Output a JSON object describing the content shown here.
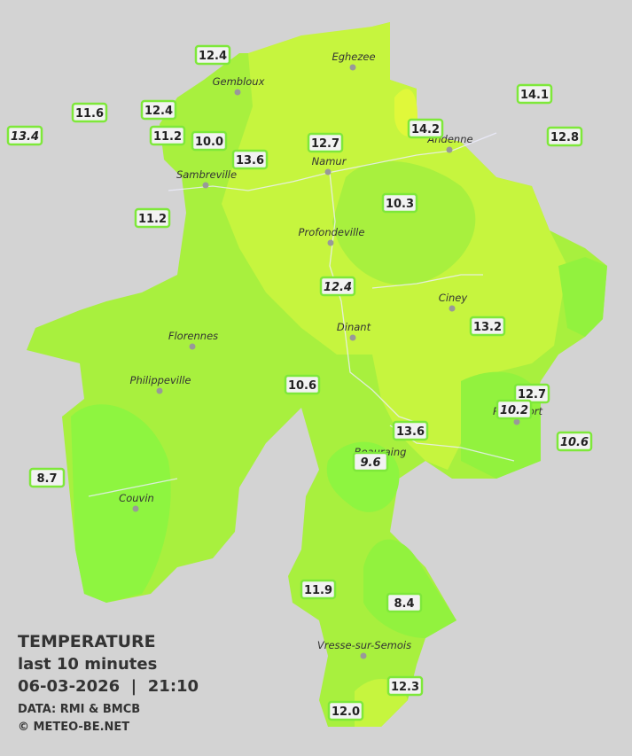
{
  "title": "TEMPERATURE",
  "subtitle": "last 10 minutes",
  "datetime": "06-03-2026  |  21:10",
  "source": "DATA: RMI & BMCB",
  "credit": "© METEO-BE.NET",
  "towns": [
    {
      "name": "Eghezee"
    },
    {
      "name": "Gembloux"
    },
    {
      "name": "Andenne"
    },
    {
      "name": "Namur"
    },
    {
      "name": "Sambreville"
    },
    {
      "name": "Profondeville"
    },
    {
      "name": "Ciney"
    },
    {
      "name": "Dinant"
    },
    {
      "name": "Florennes"
    },
    {
      "name": "Philippeville"
    },
    {
      "name": "Rochefort"
    },
    {
      "name": "Beauraing"
    },
    {
      "name": "Couvin"
    },
    {
      "name": "Vresse-sur-Semois"
    }
  ],
  "stations": [
    "12.4",
    "11.6",
    "12.4",
    "13.4",
    "11.2",
    "10.0",
    "13.6",
    "12.7",
    "14.2",
    "14.1",
    "12.8",
    "11.2",
    "10.3",
    "12.4",
    "13.2",
    "10.6",
    "12.7",
    "10.2",
    "10.6",
    "13.6",
    "9.6",
    "8.7",
    "11.9",
    "8.4",
    "12.3",
    "12.0"
  ]
}
